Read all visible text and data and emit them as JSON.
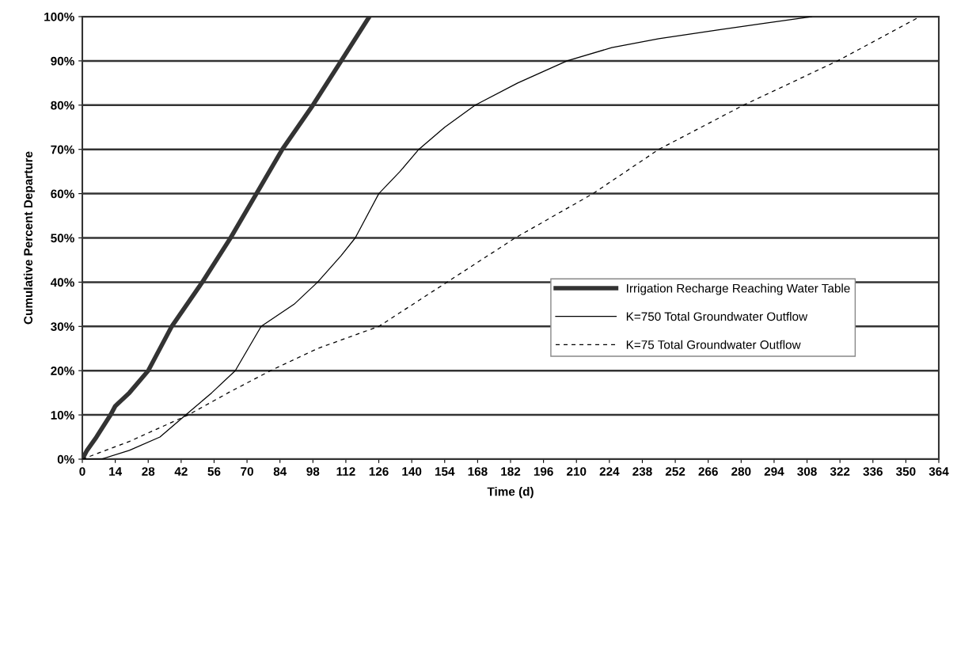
{
  "chart_data": {
    "type": "line",
    "xlabel": "Time (d)",
    "ylabel": "Cumulative Percent Departure",
    "series": [
      {
        "name": "Irrigation Recharge Reaching Water Table",
        "color": "#333333",
        "line_style": "solid",
        "x": [
          0,
          2,
          6,
          12,
          14,
          20,
          28,
          38,
          51,
          63,
          74,
          85,
          98,
          110,
          122
        ],
        "values": [
          0,
          2,
          5,
          10,
          12,
          15,
          20,
          30,
          40,
          50,
          60,
          70,
          80,
          90,
          100
        ]
      },
      {
        "name": "K=750 Total Groundwater Outflow",
        "color": "#000000",
        "line_style": "solid",
        "x": [
          0,
          8,
          20,
          33,
          44,
          55,
          65,
          76,
          90,
          100,
          110,
          116,
          126,
          135,
          143,
          154,
          167,
          185,
          206,
          225,
          245,
          270,
          290,
          310
        ],
        "values": [
          0,
          0,
          2,
          5,
          10,
          15,
          20,
          30,
          35,
          40,
          46,
          50,
          60,
          65,
          70,
          75,
          80,
          85,
          90,
          93,
          95,
          97,
          98.5,
          100
        ]
      },
      {
        "name": "K=75 Total Groundwater Outflow",
        "color": "#000000",
        "line_style": "dashed",
        "x": [
          0,
          20,
          45,
          62,
          80,
          100,
          126,
          155,
          184,
          217,
          245,
          281,
          321,
          356
        ],
        "values": [
          0,
          4,
          10,
          15,
          20,
          25,
          30,
          40,
          50,
          60,
          70,
          80,
          90,
          100
        ]
      }
    ],
    "xlim": [
      0,
      364
    ],
    "xticks": [
      0,
      14,
      28,
      42,
      56,
      70,
      84,
      98,
      112,
      126,
      140,
      154,
      168,
      182,
      196,
      210,
      224,
      238,
      252,
      266,
      280,
      294,
      308,
      322,
      336,
      350,
      364
    ],
    "ylim": [
      0,
      100
    ],
    "yticks": [
      {
        "value": 0,
        "label": "0%"
      },
      {
        "value": 10,
        "label": "10%"
      },
      {
        "value": 20,
        "label": "20%"
      },
      {
        "value": 30,
        "label": "30%"
      },
      {
        "value": 40,
        "label": "40%"
      },
      {
        "value": 50,
        "label": "50%"
      },
      {
        "value": 60,
        "label": "60%"
      },
      {
        "value": 70,
        "label": "70%"
      },
      {
        "value": 80,
        "label": "80%"
      },
      {
        "value": 90,
        "label": "90%"
      },
      {
        "value": 100,
        "label": "100%"
      }
    ],
    "grid": "y",
    "legend": "right",
    "marker": "none"
  }
}
